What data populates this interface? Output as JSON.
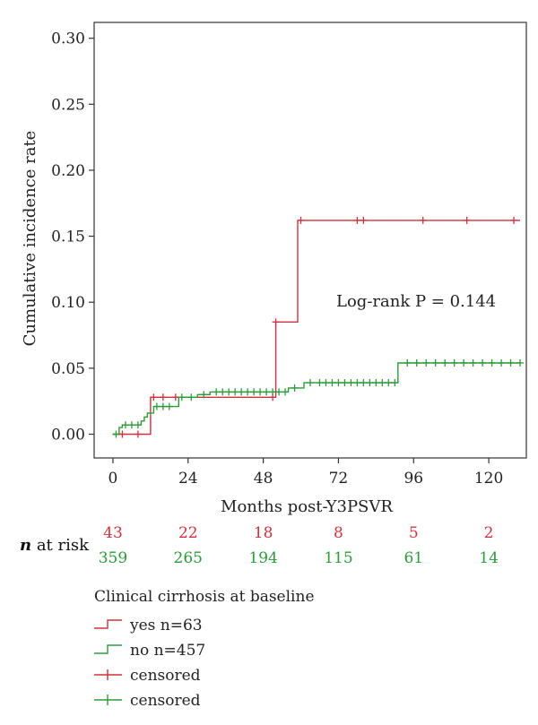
{
  "chart_data": {
    "type": "line",
    "step": true,
    "xlabel": "Months post-Y3PSVR",
    "ylabel": "Cumulative incidence rate",
    "xlim": [
      -6,
      132
    ],
    "ylim": [
      -0.018,
      0.312
    ],
    "xticks": [
      0,
      24,
      48,
      72,
      96,
      120
    ],
    "yticks": [
      0.0,
      0.05,
      0.1,
      0.15,
      0.2,
      0.25,
      0.3
    ],
    "ytick_labels": [
      "0.00",
      "0.05",
      "0.10",
      "0.15",
      "0.20",
      "0.25",
      "0.30"
    ],
    "grid": false,
    "annotation": "Log-rank P = 0.144",
    "series": [
      {
        "color": "#d0333f",
        "steps": [
          [
            0,
            0
          ],
          [
            12,
            0
          ],
          [
            12,
            0.028
          ],
          [
            26,
            0.028
          ],
          [
            26,
            0.028
          ],
          [
            52,
            0.028
          ],
          [
            52,
            0.085
          ],
          [
            59,
            0.085
          ],
          [
            59,
            0.162
          ],
          [
            130,
            0.162
          ]
        ],
        "censored": [
          [
            3,
            0
          ],
          [
            8,
            0
          ],
          [
            13,
            0.028
          ],
          [
            16,
            0.028
          ],
          [
            20,
            0.028
          ],
          [
            51,
            0.028
          ],
          [
            52,
            0.085
          ],
          [
            60,
            0.162
          ],
          [
            78,
            0.162
          ],
          [
            80,
            0.162
          ],
          [
            99,
            0.162
          ],
          [
            113,
            0.162
          ],
          [
            128,
            0.162
          ]
        ]
      },
      {
        "color": "#2e9a3a",
        "steps": [
          [
            0,
            0
          ],
          [
            2,
            0
          ],
          [
            2,
            0.005
          ],
          [
            3,
            0.005
          ],
          [
            3,
            0.007
          ],
          [
            9,
            0.007
          ],
          [
            9,
            0.01
          ],
          [
            10,
            0.01
          ],
          [
            10,
            0.013
          ],
          [
            11,
            0.013
          ],
          [
            11,
            0.016
          ],
          [
            13,
            0.016
          ],
          [
            13,
            0.021
          ],
          [
            21,
            0.021
          ],
          [
            21,
            0.028
          ],
          [
            27,
            0.028
          ],
          [
            27,
            0.03
          ],
          [
            31,
            0.03
          ],
          [
            31,
            0.032
          ],
          [
            56,
            0.032
          ],
          [
            56,
            0.035
          ],
          [
            61,
            0.035
          ],
          [
            61,
            0.039
          ],
          [
            91,
            0.039
          ],
          [
            91,
            0.054
          ],
          [
            130,
            0.054
          ]
        ],
        "censored": [
          [
            1,
            0
          ],
          [
            4,
            0.007
          ],
          [
            6,
            0.007
          ],
          [
            8,
            0.007
          ],
          [
            14,
            0.021
          ],
          [
            16,
            0.021
          ],
          [
            18,
            0.021
          ],
          [
            22,
            0.028
          ],
          [
            25,
            0.028
          ],
          [
            29,
            0.03
          ],
          [
            33,
            0.032
          ],
          [
            35,
            0.032
          ],
          [
            37,
            0.032
          ],
          [
            39,
            0.032
          ],
          [
            41,
            0.032
          ],
          [
            43,
            0.032
          ],
          [
            45,
            0.032
          ],
          [
            47,
            0.032
          ],
          [
            49,
            0.032
          ],
          [
            51,
            0.032
          ],
          [
            53,
            0.032
          ],
          [
            55,
            0.032
          ],
          [
            58,
            0.035
          ],
          [
            63,
            0.039
          ],
          [
            66,
            0.039
          ],
          [
            68,
            0.039
          ],
          [
            70,
            0.039
          ],
          [
            72,
            0.039
          ],
          [
            74,
            0.039
          ],
          [
            76,
            0.039
          ],
          [
            78,
            0.039
          ],
          [
            80,
            0.039
          ],
          [
            82,
            0.039
          ],
          [
            84,
            0.039
          ],
          [
            86,
            0.039
          ],
          [
            88,
            0.039
          ],
          [
            90,
            0.039
          ],
          [
            94,
            0.054
          ],
          [
            97,
            0.054
          ],
          [
            100,
            0.054
          ],
          [
            103,
            0.054
          ],
          [
            106,
            0.054
          ],
          [
            109,
            0.054
          ],
          [
            112,
            0.054
          ],
          [
            115,
            0.054
          ],
          [
            118,
            0.054
          ],
          [
            121,
            0.054
          ],
          [
            124,
            0.054
          ],
          [
            127,
            0.054
          ],
          [
            130,
            0.054
          ]
        ]
      }
    ],
    "at_risk": {
      "label_italic": "n",
      "label_rest": " at risk",
      "rows": [
        {
          "color": "#d0333f",
          "values": [
            "43",
            "22",
            "18",
            "8",
            "5",
            "2"
          ]
        },
        {
          "color": "#2e9a3a",
          "values": [
            "359",
            "265",
            "194",
            "115",
            "61",
            "14"
          ]
        }
      ]
    },
    "legend": {
      "title": "Clinical cirrhosis at baseline",
      "placement": "bottom",
      "entries": [
        {
          "label": "yes n=63",
          "symbol": "step",
          "color": "#d0333f"
        },
        {
          "label": "no n=457",
          "symbol": "step",
          "color": "#2e9a3a"
        },
        {
          "label": "censored",
          "symbol": "plus",
          "color": "#d0333f"
        },
        {
          "label": "censored",
          "symbol": "plus",
          "color": "#2e9a3a"
        }
      ]
    }
  }
}
